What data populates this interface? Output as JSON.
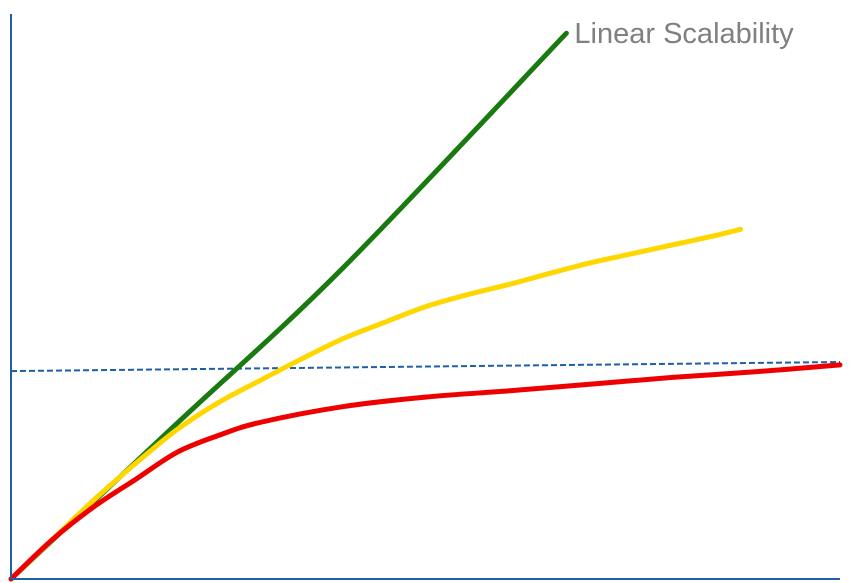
{
  "chart_data": {
    "type": "line",
    "title": "",
    "xlabel": "",
    "ylabel": "",
    "grid": false,
    "xlim": [
      0,
      100
    ],
    "ylim": [
      0,
      100
    ],
    "axis_color": "#1f5fa8",
    "annotations": [
      {
        "text": "Linear Scalability",
        "x": 67,
        "y": 97
      }
    ],
    "reference_lines": [
      {
        "style": "dashed",
        "color": "#1f5fa8",
        "points": [
          [
            0,
            36.8
          ],
          [
            100,
            38.4
          ]
        ]
      }
    ],
    "series": [
      {
        "color": "#1a7a10",
        "points": [
          [
            0,
            0
          ],
          [
            20,
            27.5
          ],
          [
            40,
            55
          ],
          [
            67,
            96.6
          ]
        ]
      },
      {
        "color": "#ffd700",
        "points": [
          [
            0,
            0
          ],
          [
            5,
            7
          ],
          [
            10,
            14
          ],
          [
            15,
            20.4
          ],
          [
            20,
            26.4
          ],
          [
            25,
            31.2
          ],
          [
            30,
            35.1
          ],
          [
            35,
            38.9
          ],
          [
            40,
            42.5
          ],
          [
            45,
            45.4
          ],
          [
            50,
            48.2
          ],
          [
            55,
            50.3
          ],
          [
            60,
            52.1
          ],
          [
            65,
            54.1
          ],
          [
            70,
            56
          ],
          [
            75,
            57.6
          ],
          [
            80,
            59.2
          ],
          [
            85,
            60.8
          ],
          [
            88,
            61.9
          ]
        ]
      },
      {
        "color": "#ee0000",
        "points": [
          [
            0,
            0
          ],
          [
            5,
            7
          ],
          [
            10,
            12.8
          ],
          [
            15,
            17.6
          ],
          [
            20,
            22.4
          ],
          [
            25,
            25.4
          ],
          [
            30,
            27.7
          ],
          [
            40,
            30.5
          ],
          [
            50,
            32.2
          ],
          [
            60,
            33.3
          ],
          [
            70,
            34.5
          ],
          [
            80,
            35.7
          ],
          [
            90,
            36.7
          ],
          [
            100,
            37.9
          ]
        ]
      }
    ]
  }
}
